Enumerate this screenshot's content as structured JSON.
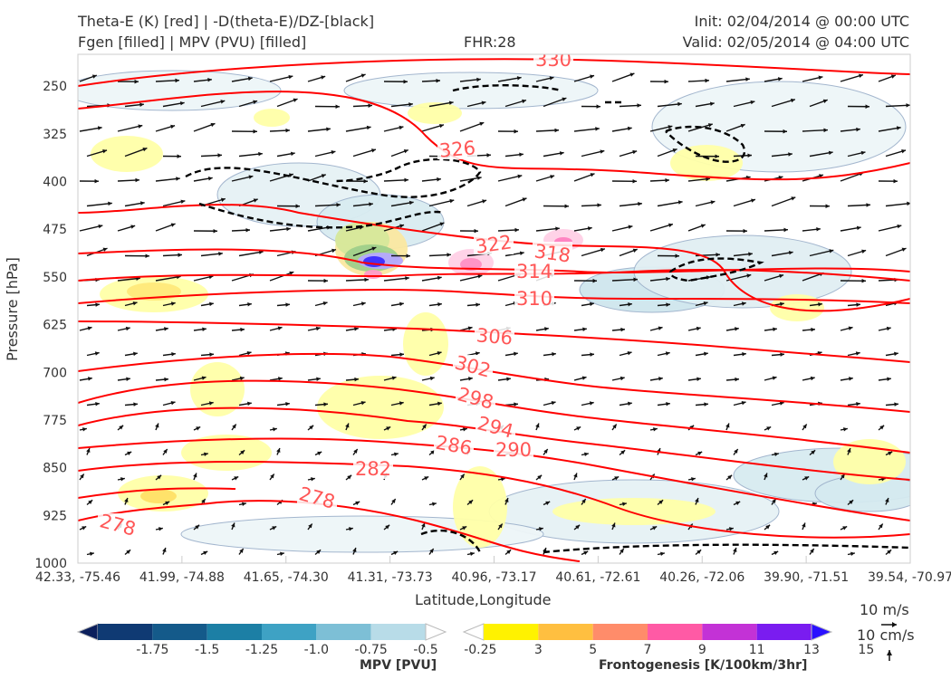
{
  "header": {
    "title_line1": "Theta-E (K) [red] | -D(theta-E)/DZ-[black]",
    "title_line2": "Fgen [filled] | MPV (PVU) [filled]",
    "fhr": "FHR:28",
    "init": "Init: 02/04/2014 @ 00:00 UTC",
    "valid": "Valid: 02/05/2014 @ 04:00 UTC"
  },
  "chart_data": {
    "type": "contour",
    "xlabel": "Latitude,Longitude",
    "ylabel": "Pressure [hPa]",
    "x_ticks": [
      "42.33, -75.46",
      "41.99, -74.88",
      "41.65, -74.30",
      "41.31, -73.73",
      "40.96, -73.17",
      "40.61, -72.61",
      "40.26, -72.06",
      "39.90, -71.51",
      "39.54, -70.97"
    ],
    "y_ticks": [
      250,
      325,
      400,
      475,
      550,
      625,
      700,
      775,
      850,
      925,
      1000
    ],
    "ylim": [
      1000,
      200
    ],
    "theta_e_contour_labels": [
      {
        "text": "330"
      },
      {
        "text": "326"
      },
      {
        "text": "322"
      },
      {
        "text": "318"
      },
      {
        "text": "314"
      },
      {
        "text": "310"
      },
      {
        "text": "306"
      },
      {
        "text": "302"
      },
      {
        "text": "298"
      },
      {
        "text": "294"
      },
      {
        "text": "290"
      },
      {
        "text": "286"
      },
      {
        "text": "282"
      },
      {
        "text": "278"
      },
      {
        "text": "278"
      }
    ],
    "theta_e_color": "#ff0000",
    "stability_contour_color": "#000000",
    "mpv_colorbar": {
      "label": "MPV [PVU]",
      "ticks": [
        "-1.75",
        "-1.5",
        "-1.25",
        "-1.0",
        "-0.75",
        "-0.5",
        "-0.25"
      ],
      "colors": [
        "#0b1f5c",
        "#0f3a73",
        "#145a8a",
        "#1c7fa5",
        "#3ea2c4",
        "#7dbfd6",
        "#b8dce8",
        "#ffffff"
      ]
    },
    "fgen_colorbar": {
      "label": "Frontogenesis [K/100km/3hr]",
      "ticks": [
        "3",
        "5",
        "7",
        "9",
        "11",
        "13",
        "15"
      ],
      "colors": [
        "#ffffff",
        "#fff200",
        "#ffbf40",
        "#ff8c6a",
        "#ff5aa5",
        "#c332d6",
        "#7a1cf0",
        "#2a10ff"
      ]
    },
    "vector_key": {
      "horizontal": "10 m/s",
      "vertical": "10 cm/s"
    }
  }
}
